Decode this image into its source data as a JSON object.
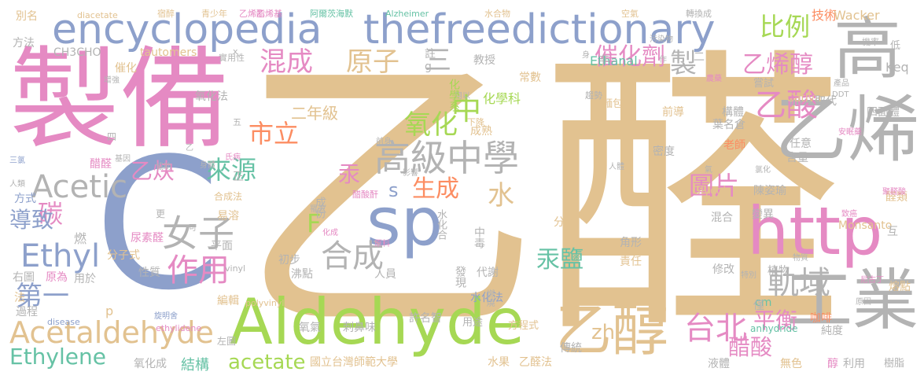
{
  "palette": {
    "tan": "#e2c290",
    "pink": "#e58ac3",
    "gray": "#b3b3b3",
    "blue": "#8da0cb",
    "green": "#a6d854",
    "orange": "#fc8d62",
    "teal": "#66c2a5",
    "yellow": "#ffd92f"
  },
  "words": {
    "yi_quan": "乙醛",
    "zhi_bei": "製備",
    "c": "C",
    "yi_xi": "乙烯",
    "gao": "高",
    "http": "http",
    "gong_ye": "工業",
    "aldehyde": "Aldehyde",
    "encyclopedia": "encyclopedia",
    "thefreedictionary": "thefreedictionary",
    "sp": "sp",
    "yi_chun": "乙醇",
    "acetaldehyde": "Acetaldehyde",
    "gao_ji_zhong_xue": "高級中學",
    "nv_zi": "女子",
    "acetic": "Acetic",
    "ethyl": "Ethyl",
    "he_cheng": "合成",
    "zuo_yong": "作用",
    "tai_bei": "台北",
    "gui_yu": "軌域",
    "yi_suan": "乙酸",
    "yi_xi_chun": "乙烯醇",
    "bi_li": "比例",
    "hun_cheng": "混成",
    "yuan_zi": "原子",
    "cui_hua_ji": "催化劑",
    "shi_li": "市立",
    "lai_yuan": "來源",
    "ethylene": "Ethylene",
    "acetate": "acetate",
    "gong_yan": "汞鹽",
    "tu_pian": "圖片",
    "yi_que": "乙炔",
    "di_yi": "第一",
    "yang_hua": "氧化",
    "sheng_cheng": "生成",
    "ping_heng": "平衡",
    "cu_suan": "醋酸",
    "zh": "zh",
    "tan": "碳",
    "dao_zhi": "導致",
    "shui": "水",
    "zhong": "中",
    "gong": "汞",
    "san": "三",
    "zhi_mid": "製",
    "s": "s",
    "f": "F",
    "er_nian_ji": "二年級",
    "jie_gou": "結構",
    "chang_wen": "室溫",
    "ji_shu": "技術",
    "wacker": "Wacker",
    "ethanal": "Ethanal",
    "keq": "Keq",
    "cativa": "Cativa",
    "monsanto": "Monsanto",
    "glycol": "Glycol",
    "tautomers": "tautomers",
    "ch3cho": "CH3CHO",
    "ntnu": "國立台灣師範大學",
    "shui_guo": "水果",
    "yi_quan_fa": "乙醛法",
    "chuan_tong": "傳統",
    "ye_ti": "液體",
    "wu_se": "無色",
    "chun": "醇",
    "li_yong": "利用",
    "shu_zhi": "樹脂",
    "rong_dian": "熔點",
    "chun_du": "純度",
    "anhydride": "anhydride",
    "cm": "cm",
    "ka_fei": "咖啡",
    "zhi_wu": "植物",
    "xiu_gai": "修改",
    "ze_ren": "責任",
    "jiao_xing": "角形",
    "fei_dian": "沸點",
    "ren_yuan": "人員",
    "dai_xie": "代謝",
    "shui_hua_fa": "水化法",
    "xu_ming_zhi": "許名智",
    "ci_bi_wei": "刺鼻味",
    "yang_hua_fa": "氧化法",
    "yang_hua_cheng": "氧化成",
    "bian_ji": "編輯",
    "fen_zi_shi": "分子式",
    "xing_zhi": "性質",
    "yuan_wei": "原為",
    "yong_yu": "用於",
    "you_tu": "右圖",
    "fang_shi": "方式",
    "guo_cheng": "過程",
    "fa": "法",
    "cu_quan": "醋醛",
    "chen_zi_yu": "陳姿瑜",
    "ye_ming_cang": "葉名倉",
    "lao_shi": "老師",
    "mi_du": "密度",
    "han_liang": "含量",
    "ren_yi": "任意",
    "mian_bao": "麵包",
    "gou_ti": "構體",
    "qian_dao": "前導",
    "qu_dai": "取代",
    "si_mian_ti": "四面體",
    "chang_shi": "嘗試",
    "jia_chun": "甲醇",
    "hua_xue_ke": "化學科",
    "hua_xue_xi": "化學系",
    "chang_shu": "常數",
    "jiao_shou": "教授",
    "cui_hua": "催化",
    "fang_fa": "方法",
    "bie_ming": "別名",
    "diacetate": "diacetate",
    "qing_shao_nian": "青少年",
    "yi_xi_zhi": "乙烯酯",
    "alzheimer": "Alzheimer",
    "shui_he_wu": "水合物",
    "kong_qi": "空氣",
    "zhuan_huan_cheng": "轉換成",
    "di": "低",
    "ji_lv": "機率",
    "su_zui": "宿醉",
    "a_la": "阿爾茨海默",
    "yi_xi_2": "乙烯基",
    "yong_yu2": "用途",
    "fang_cheng_shi": "方程式",
    "ran_shao": "燃燒",
    "fen_zi": "分子",
    "cheng_fen": "成份",
    "chu_bu": "初步",
    "fa_xian": "發現",
    "zhong_du": "中毒",
    "shui_hua_he": "水化合",
    "yi_rong": "易溶",
    "he_cheng_fa": "合成法",
    "ping_mian": "平面",
    "niao_su_quan": "尿素醛",
    "zuo_tu": "左圖",
    "polyvinyl": "polyvinyl",
    "ethylidene": "ethylidene",
    "disease": "disease",
    "vinyl": "vinyl",
    "yang_qi": "氧氣",
    "bian_yi": "變異",
    "quan_lei": "醛類",
    "hun_he": "混合",
    "cheng_re": "成熟",
    "xia_jiang": "下降",
    "qu_shi": "趨勢",
    "shi_yong_xing": "實用性",
    "ji_bi": "二",
    "fei": "非",
    "zhu": "註",
    "g": "g",
    "p": "p",
    "x": "x",
    "ran": "燃",
    "geng": "更",
    "jin": "僅",
    "hu": "互",
    "zheng": "正",
    "wu": "五",
    "si": "四",
    "jian_quan": "醋酸酐",
    "zeng_qiang": "增強",
    "san_qing": "三氯",
    "ren_lei": "人類",
    "ji_yin": "基因",
    "xie_zhu": "協助",
    "shen_ti": "身體",
    "shi_bing": "氏病",
    "qian_shen": "前身",
    "xuan_ming_shi": "旋明舍",
    "hua_cheng": "化成",
    "ying_xiang": "影響",
    "yuan_liao": "原料",
    "chong_xin": "罹患",
    "nong_yao": "農藥",
    "wu_ran_wu": "污染物",
    "ji_quan": "致癌",
    "yuan_yin": "原因",
    "ni_gu_ding": "尼古丁",
    "an_yi": "安眠藥",
    "ju_quan": "聚醛酸",
    "lv_hua": "氯化",
    "qi": "氣",
    "ren_ti": "人體",
    "te_bie": "特別",
    "wu_pin": "物質",
    "chan_fu_li": "產品",
    "ddt": "DDT",
    "shen": "身",
    "zuo": "作",
    "yong_yi": "用以",
    "yi": "乙",
    "ke_yi": "可"
  }
}
